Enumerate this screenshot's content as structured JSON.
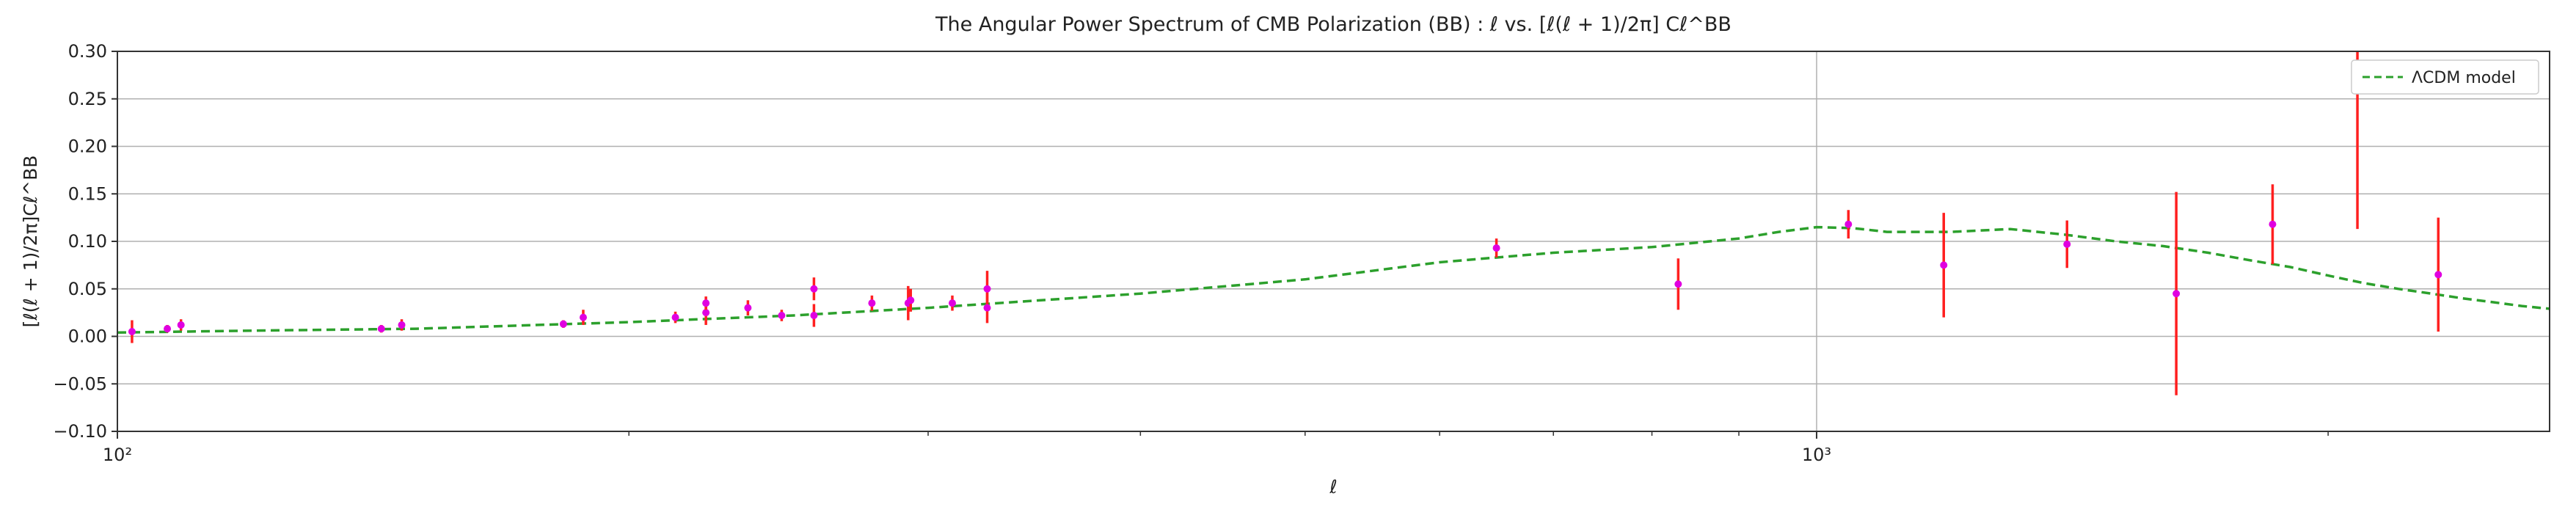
{
  "chart_data": {
    "type": "scatter",
    "title": "The Angular Power Spectrum of CMB Polarization (BB) : ℓ vs. [ℓ(ℓ + 1)/2π]  Cℓ^BB",
    "xlabel": "ℓ",
    "ylabel": "[ℓ(ℓ + 1)/2π]Cℓ^BB",
    "xscale": "log",
    "xlim": [
      100,
      2700
    ],
    "ylim": [
      -0.1,
      0.3
    ],
    "grid": true,
    "legend_position": "top-right",
    "x_ticks": [
      {
        "value": 100,
        "label": "10²"
      },
      {
        "value": 1000,
        "label": "10³"
      }
    ],
    "y_ticks": [
      {
        "value": -0.1,
        "label": "−0.10"
      },
      {
        "value": -0.05,
        "label": "−0.05"
      },
      {
        "value": 0.0,
        "label": "0.00"
      },
      {
        "value": 0.05,
        "label": "0.05"
      },
      {
        "value": 0.1,
        "label": "0.10"
      },
      {
        "value": 0.15,
        "label": "0.15"
      },
      {
        "value": 0.2,
        "label": "0.20"
      },
      {
        "value": 0.25,
        "label": "0.25"
      },
      {
        "value": 0.3,
        "label": "0.30"
      }
    ],
    "colors": {
      "points": "#e000e0",
      "errorbars": "#ff2020",
      "model": "#2ca02c",
      "grid": "#b0b0b0"
    },
    "series": [
      {
        "kind": "errorbar",
        "points": [
          {
            "x": 102,
            "y": 0.005,
            "err": 0.012
          },
          {
            "x": 107,
            "y": 0.008,
            "err": 0.004
          },
          {
            "x": 109,
            "y": 0.012,
            "err": 0.006
          },
          {
            "x": 143,
            "y": 0.008,
            "err": 0.004
          },
          {
            "x": 147,
            "y": 0.012,
            "err": 0.006
          },
          {
            "x": 183,
            "y": 0.013,
            "err": 0.004
          },
          {
            "x": 188,
            "y": 0.02,
            "err": 0.008
          },
          {
            "x": 213,
            "y": 0.02,
            "err": 0.006
          },
          {
            "x": 222,
            "y": 0.025,
            "err": 0.013
          },
          {
            "x": 222,
            "y": 0.035,
            "err": 0.007
          },
          {
            "x": 235,
            "y": 0.03,
            "err": 0.008
          },
          {
            "x": 246,
            "y": 0.022,
            "err": 0.006
          },
          {
            "x": 257,
            "y": 0.05,
            "err": 0.012
          },
          {
            "x": 257,
            "y": 0.022,
            "err": 0.012
          },
          {
            "x": 278,
            "y": 0.035,
            "err": 0.008
          },
          {
            "x": 292,
            "y": 0.035,
            "err": 0.018
          },
          {
            "x": 293,
            "y": 0.038,
            "err": 0.012
          },
          {
            "x": 310,
            "y": 0.035,
            "err": 0.008
          },
          {
            "x": 325,
            "y": 0.05,
            "err": 0.019
          },
          {
            "x": 325,
            "y": 0.03,
            "err": 0.016
          },
          {
            "x": 648,
            "y": 0.093,
            "err": 0.01
          },
          {
            "x": 829,
            "y": 0.055,
            "err": 0.027
          },
          {
            "x": 1044,
            "y": 0.118,
            "err": 0.015
          },
          {
            "x": 1188,
            "y": 0.075,
            "err": 0.055
          },
          {
            "x": 1404,
            "y": 0.097,
            "err": 0.025
          },
          {
            "x": 1628,
            "y": 0.045,
            "err": 0.107
          },
          {
            "x": 1855,
            "y": 0.118,
            "err": 0.042
          },
          {
            "x": 2081,
            "y": 0.305,
            "err": 0.192
          },
          {
            "x": 2322,
            "y": 0.065,
            "err": 0.06
          }
        ]
      },
      {
        "kind": "line",
        "name": "ΛCDM model",
        "x": [
          100,
          120,
          150,
          200,
          250,
          300,
          400,
          500,
          600,
          700,
          800,
          900,
          950,
          1000,
          1050,
          1100,
          1200,
          1300,
          1400,
          1500,
          1600,
          1700,
          1800,
          1900,
          2000,
          2100,
          2200,
          2300,
          2400,
          2500,
          2600,
          2700
        ],
        "y": [
          0.004,
          0.006,
          0.008,
          0.015,
          0.022,
          0.03,
          0.045,
          0.06,
          0.078,
          0.088,
          0.094,
          0.103,
          0.11,
          0.115,
          0.114,
          0.11,
          0.11,
          0.113,
          0.107,
          0.1,
          0.095,
          0.088,
          0.08,
          0.073,
          0.064,
          0.056,
          0.05,
          0.045,
          0.04,
          0.036,
          0.032,
          0.029
        ]
      }
    ]
  }
}
